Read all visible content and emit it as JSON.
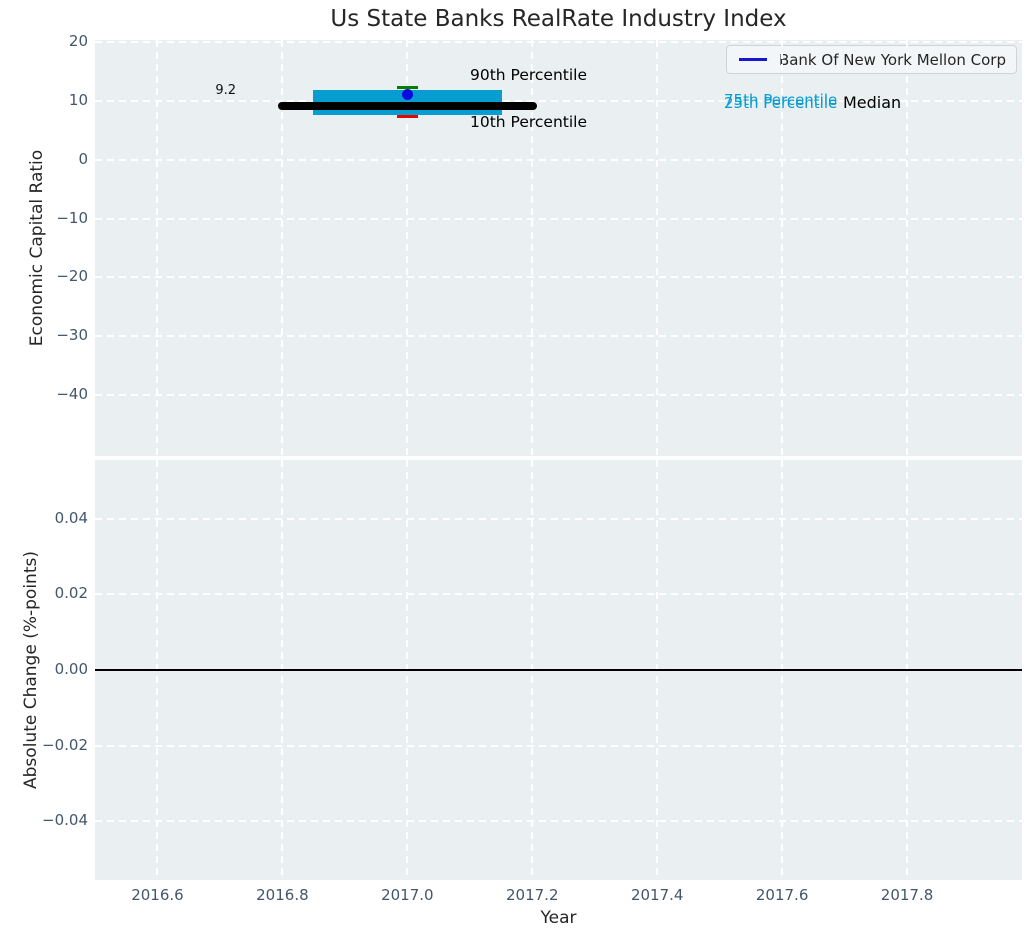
{
  "chart_data": {
    "type": "box-timeseries",
    "title": "Us State Banks RealRate Industry Index",
    "x_axis": {
      "label": "Year",
      "lim": [
        2016.5,
        2017.984
      ],
      "ticks": [
        2016.6,
        2016.8,
        2017.0,
        2017.2,
        2017.4,
        2017.6,
        2017.8
      ],
      "tick_labels": [
        "2016.6",
        "2016.8",
        "2017.0",
        "2017.2",
        "2017.4",
        "2017.6",
        "2017.8"
      ]
    },
    "panels": [
      {
        "ylabel": "Economic Capital Ratio",
        "ylim": [
          -50.4,
          20.4
        ],
        "yticks": [
          20,
          10,
          0,
          -10,
          -20,
          -30,
          -40
        ],
        "ytick_labels": [
          "20",
          "10",
          "0",
          "−10",
          "−20",
          "−30",
          "−40"
        ],
        "grid": "white dashed on light panel",
        "legend": {
          "label": "Bank Of New York Mellon Corp",
          "line_color": "#1717cf",
          "position": "upper right"
        },
        "box": {
          "year": 2017.0,
          "median": 9.2,
          "p25": 7.7,
          "p75": 11.9,
          "p10": 7.3,
          "p90": 12.4,
          "company_value": 11.1,
          "median_span": [
            2016.793,
            2017.207
          ],
          "box_span": [
            2016.849,
            2017.151
          ],
          "cap_halfwidth": 0.017
        },
        "annotations": {
          "p90": {
            "text": "90th Percentile"
          },
          "p10": {
            "text": "10th Percentile"
          },
          "p75": {
            "text": "75th Percentile"
          },
          "p25": {
            "text": "25th Percentile"
          },
          "median": {
            "text": "Median"
          },
          "median_value": {
            "text": "9.2"
          }
        },
        "colors": {
          "panel_background": "#eaeff1",
          "iqr_box": "#089dd1",
          "p90_cap": "#008000",
          "p10_cap": "#ee0000",
          "median_line": "#000000",
          "company_dot": "#0b0be0",
          "whisker": "#22313f"
        }
      },
      {
        "ylabel": "Absolute Change (%-points)",
        "ylim": [
          -0.0556,
          0.0556
        ],
        "yticks": [
          0.04,
          0.02,
          0,
          -0.02,
          -0.04
        ],
        "ytick_labels": [
          "0.04",
          "0.02",
          "0.00",
          "−0.02",
          "−0.04"
        ],
        "zero_line": 0.0,
        "zero_line_color": "#000000"
      }
    ]
  }
}
